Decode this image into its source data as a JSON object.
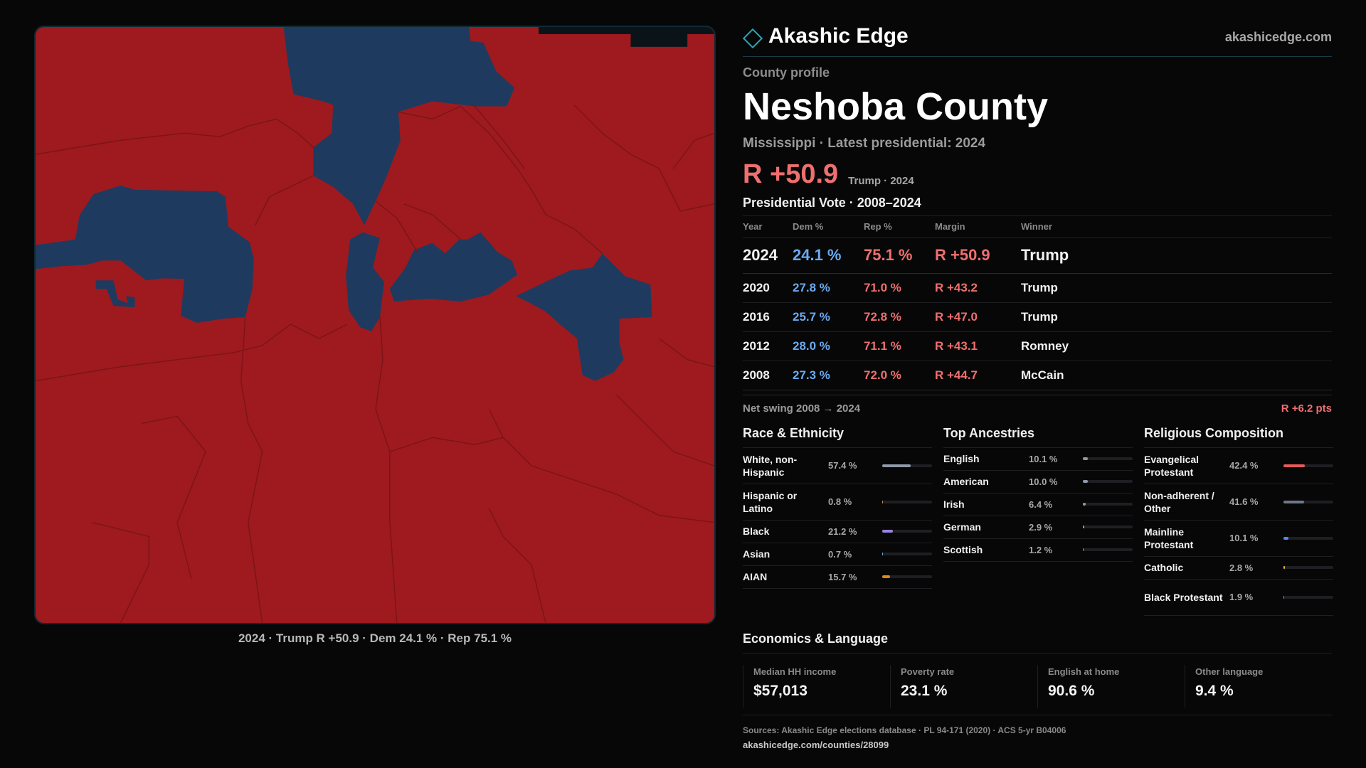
{
  "brand": {
    "name": "Akashic Edge",
    "url": "akashicedge.com"
  },
  "profile": {
    "eyebrow": "County profile",
    "title": "Neshoba County",
    "subtitle": "Mississippi · Latest presidential: 2024",
    "headline_margin": "R +50.9",
    "headline_note": "Trump · 2024"
  },
  "map": {
    "caption": "2024 · Trump R +50.9 · Dem 24.1 % · Rep 75.1 %",
    "colors": {
      "republican": "#9e1a1f",
      "democrat": "#1f3a5f"
    }
  },
  "presidential": {
    "title": "Presidential Vote · 2008–2024",
    "headers": {
      "year": "Year",
      "dem": "Dem %",
      "rep": "Rep %",
      "margin": "Margin",
      "winner": "Winner"
    },
    "rows": [
      {
        "year": "2024",
        "dem": "24.1 %",
        "rep": "75.1 %",
        "margin": "R +50.9",
        "winner": "Trump"
      },
      {
        "year": "2020",
        "dem": "27.8 %",
        "rep": "71.0 %",
        "margin": "R +43.2",
        "winner": "Trump"
      },
      {
        "year": "2016",
        "dem": "25.7 %",
        "rep": "72.8 %",
        "margin": "R +47.0",
        "winner": "Trump"
      },
      {
        "year": "2012",
        "dem": "28.0 %",
        "rep": "71.1 %",
        "margin": "R +43.1",
        "winner": "Romney"
      },
      {
        "year": "2008",
        "dem": "27.3 %",
        "rep": "72.0 %",
        "margin": "R +44.7",
        "winner": "McCain"
      }
    ],
    "swing_label": "Net swing 2008 → 2024",
    "swing_value": "R +6.2 pts"
  },
  "race": {
    "title": "Race & Ethnicity",
    "items": [
      {
        "label": "White, non-Hispanic",
        "value": "57.4 %",
        "pct": 57.4,
        "color": "#8f99a8"
      },
      {
        "label": "Hispanic or Latino",
        "value": "0.8 %",
        "pct": 0.8,
        "color": "#d0884a"
      },
      {
        "label": "Black",
        "value": "21.2 %",
        "pct": 21.2,
        "color": "#9a82e0"
      },
      {
        "label": "Asian",
        "value": "0.7 %",
        "pct": 0.7,
        "color": "#6aaaf0"
      },
      {
        "label": "AIAN",
        "value": "15.7 %",
        "pct": 15.7,
        "color": "#d88a1e"
      }
    ]
  },
  "ancestry": {
    "title": "Top Ancestries",
    "items": [
      {
        "label": "English",
        "value": "10.1 %",
        "pct": 10.1,
        "color": "#8f99a8"
      },
      {
        "label": "American",
        "value": "10.0 %",
        "pct": 10.0,
        "color": "#8f99a8"
      },
      {
        "label": "Irish",
        "value": "6.4 %",
        "pct": 6.4,
        "color": "#8f99a8"
      },
      {
        "label": "German",
        "value": "2.9 %",
        "pct": 2.9,
        "color": "#8f99a8"
      },
      {
        "label": "Scottish",
        "value": "1.2 %",
        "pct": 1.2,
        "color": "#8f99a8"
      }
    ]
  },
  "religion": {
    "title": "Religious Composition",
    "items": [
      {
        "label": "Evangelical Protestant",
        "value": "42.4 %",
        "pct": 42.4,
        "color": "#e85a5a"
      },
      {
        "label": "Non-adherent / Other",
        "value": "41.6 %",
        "pct": 41.6,
        "color": "#6f7888"
      },
      {
        "label": "Mainline Protestant",
        "value": "10.1 %",
        "pct": 10.1,
        "color": "#4f8ee8"
      },
      {
        "label": "Catholic",
        "value": "2.8 %",
        "pct": 2.8,
        "color": "#e6b93a"
      },
      {
        "label": "Black Protestant",
        "value": "1.9 %",
        "pct": 1.9,
        "color": "#9a82e0"
      }
    ]
  },
  "economics": {
    "title": "Economics & Language",
    "cells": [
      {
        "label": "Median HH income",
        "value": "$57,013"
      },
      {
        "label": "Poverty rate",
        "value": "23.1 %"
      },
      {
        "label": "English at home",
        "value": "90.6 %"
      },
      {
        "label": "Other language",
        "value": "9.4 %"
      }
    ]
  },
  "footer": {
    "sources": "Sources: Akashic Edge elections database · PL 94-171 (2020) · ACS 5-yr B04006",
    "url": "akashicedge.com/counties/28099"
  }
}
